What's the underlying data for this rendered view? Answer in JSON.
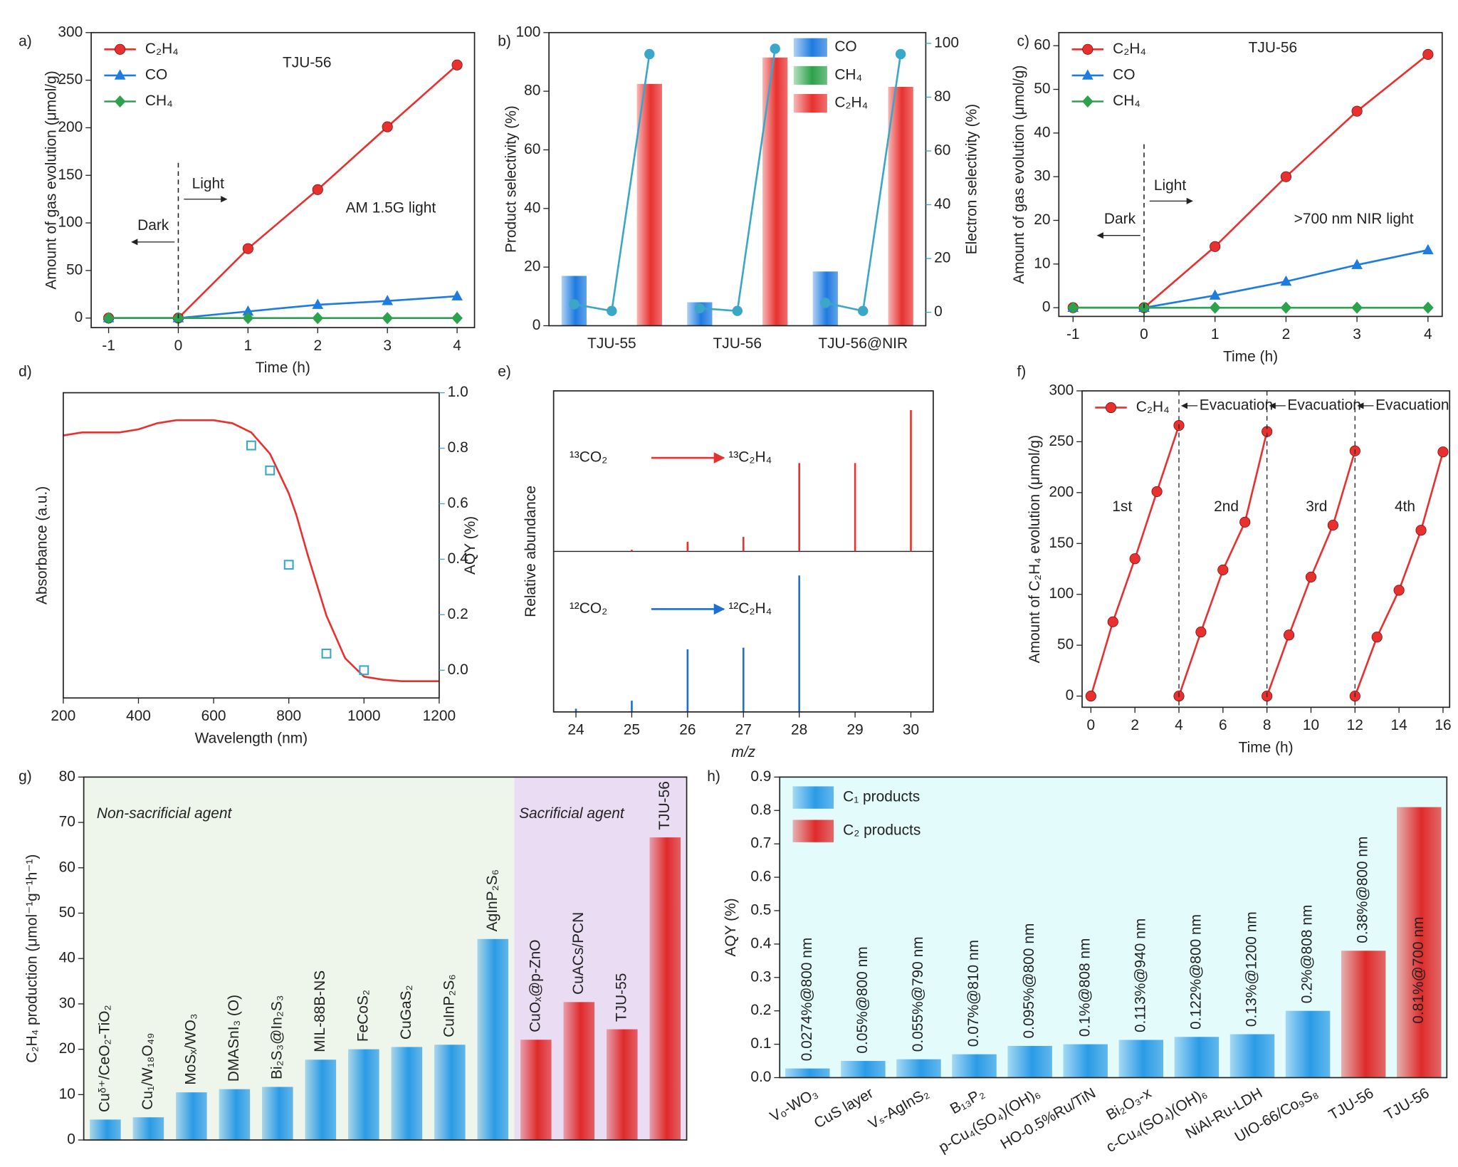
{
  "chart_data": [
    {
      "type": "line",
      "panel_label": "a)",
      "title": "TJU-56",
      "annotations": [
        "AM 1.5G light",
        "Light",
        "Dark"
      ],
      "xlabel": "Time (h)",
      "ylabel": "Amount of gas evolution (μmol/g)",
      "x": [
        -1,
        0,
        1,
        2,
        3,
        4
      ],
      "xlim": [
        -1.25,
        4.25
      ],
      "xticks": [
        -1,
        0,
        1,
        2,
        3,
        4
      ],
      "ylim": [
        -10,
        300
      ],
      "yticks": [
        0,
        50,
        100,
        150,
        200,
        250,
        300
      ],
      "divider": 0,
      "legend": "upper left",
      "series": [
        {
          "name": "C₂H₄",
          "color": "#e8312f",
          "marker": "circle",
          "values": [
            0,
            0,
            73,
            135,
            201,
            266
          ]
        },
        {
          "name": "CO",
          "color": "#1e7be0",
          "marker": "triangle",
          "values": [
            0,
            0,
            7,
            14,
            18,
            23
          ]
        },
        {
          "name": "CH₄",
          "color": "#2ca24c",
          "marker": "diamond",
          "values": [
            0,
            0,
            0,
            0,
            0,
            0
          ]
        }
      ]
    },
    {
      "type": "bar",
      "panel_label": "b)",
      "ylabel": "Product selectivity (%)",
      "y2label": "Electron selectivity (%)",
      "y2_color": "#3aa6c8",
      "categories": [
        "TJU-55",
        "TJU-56",
        "TJU-56@NIR"
      ],
      "ylim": [
        0,
        100
      ],
      "yticks": [
        0,
        20,
        40,
        60,
        80,
        100
      ],
      "y2lim": [
        -5,
        104
      ],
      "y2ticks": [
        0,
        20,
        40,
        60,
        80,
        100
      ],
      "legend": "upper right",
      "series": [
        {
          "name": "CO",
          "color": "#1e7be0",
          "values": [
            17,
            8,
            18.5
          ]
        },
        {
          "name": "CH₄",
          "color": "#2ca24c",
          "values": [
            0,
            0,
            0
          ]
        },
        {
          "name": "C₂H₄",
          "color": "#e8312f",
          "values": [
            82.5,
            91.5,
            81.5
          ]
        }
      ],
      "electron_selectivity": {
        "color": "#3aa6c8",
        "axis": "y2",
        "values": [
          [
            3,
            0.5,
            96
          ],
          [
            1.5,
            0.5,
            98
          ],
          [
            3.5,
            0.5,
            96
          ]
        ]
      }
    },
    {
      "type": "line",
      "panel_label": "c)",
      "title": "TJU-56",
      "annotations": [
        ">700 nm NIR light",
        "Light",
        "Dark"
      ],
      "xlabel": "Time (h)",
      "ylabel": "Amount of gas evolution (μmol/g)",
      "x": [
        -1,
        0,
        1,
        2,
        3,
        4
      ],
      "xlim": [
        -1.2,
        4.2
      ],
      "xticks": [
        -1,
        0,
        1,
        2,
        3,
        4
      ],
      "ylim": [
        -2,
        63
      ],
      "yticks": [
        0,
        10,
        20,
        30,
        40,
        50,
        60
      ],
      "divider": 0,
      "legend": "upper left",
      "series": [
        {
          "name": "C₂H₄",
          "color": "#e8312f",
          "marker": "circle",
          "values": [
            0,
            0,
            14,
            30,
            45,
            58
          ]
        },
        {
          "name": "CO",
          "color": "#1e7be0",
          "marker": "triangle",
          "values": [
            0,
            0,
            2.8,
            6,
            9.8,
            13.2
          ]
        },
        {
          "name": "CH₄",
          "color": "#2ca24c",
          "marker": "diamond",
          "values": [
            0,
            0,
            0,
            0,
            0,
            0
          ]
        }
      ]
    },
    {
      "type": "line",
      "panel_label": "d)",
      "xlabel": "Wavelength (nm)",
      "ylabel": "Absorbance (a.u.)",
      "ylabel_color": "#e8312f",
      "y2label": "AQY (%)",
      "y2_color": "#3aa6c8",
      "xlim": [
        200,
        1200
      ],
      "xticks": [
        200,
        400,
        600,
        800,
        1000,
        1200
      ],
      "ylim": [
        0,
        1
      ],
      "y2lim": [
        -0.1,
        1
      ],
      "y2ticks": [
        {
          "value": 0,
          "label": "0.0"
        },
        0.2,
        0.4,
        0.6,
        0.8,
        {
          "value": 1,
          "label": "1.0"
        }
      ],
      "series": [
        {
          "color": "#e8312f",
          "x": [
            200,
            250,
            300,
            350,
            400,
            450,
            500,
            550,
            600,
            650,
            700,
            750,
            800,
            820,
            850,
            900,
            950,
            1000,
            1050,
            1100,
            1150,
            1200
          ],
          "values": [
            0.86,
            0.87,
            0.87,
            0.87,
            0.88,
            0.9,
            0.91,
            0.91,
            0.91,
            0.9,
            0.87,
            0.8,
            0.67,
            0.6,
            0.47,
            0.27,
            0.13,
            0.07,
            0.06,
            0.055,
            0.055,
            0.055
          ]
        },
        {
          "color": "#3aa6c8",
          "axis": "y2",
          "marker": "square",
          "line": false,
          "x": [
            700,
            750,
            800,
            900,
            1000
          ],
          "values": [
            0.81,
            0.72,
            0.38,
            0.06,
            0
          ]
        }
      ]
    },
    {
      "type": "stem",
      "panel_label": "e)",
      "xlabel": "m/z",
      "ylabel": "Relative abundance",
      "xlim": [
        23.6,
        30.4
      ],
      "xticks": [
        24,
        25,
        26,
        27,
        28,
        29,
        30
      ],
      "ylim": [
        0,
        1
      ],
      "spectra": [
        {
          "reactant": "¹³CO₂",
          "product": "¹³C₂H₄",
          "color": "#e8312f",
          "x": [
            25,
            26,
            27,
            28,
            29,
            30
          ],
          "values": [
            0.01,
            0.06,
            0.09,
            0.55,
            0.55,
            0.88
          ]
        },
        {
          "reactant": "¹²CO₂",
          "product": "¹²C₂H₄",
          "color": "#1e6fd0",
          "x": [
            24,
            25,
            26,
            27,
            28
          ],
          "values": [
            0.02,
            0.07,
            0.39,
            0.4,
            0.85
          ]
        }
      ]
    },
    {
      "type": "line",
      "panel_label": "f)",
      "xlabel": "Time (h)",
      "ylabel": "Amount of C₂H₄ evolution (μmol/g)",
      "xlim": [
        -0.4,
        16.3
      ],
      "xticks": [
        0,
        2,
        4,
        6,
        8,
        10,
        12,
        14,
        16
      ],
      "ylim": [
        -11,
        300
      ],
      "yticks": [
        0,
        50,
        100,
        150,
        200,
        250,
        300
      ],
      "legend": "upper left",
      "vlines": [
        4,
        8,
        12
      ],
      "vline_label": "Evacuation",
      "annotations": [
        "1st",
        "2nd",
        "3rd",
        "4th"
      ],
      "x": [
        0,
        1,
        2,
        3,
        4,
        4,
        4,
        5,
        6,
        7,
        8,
        8,
        8,
        9,
        10,
        11,
        12,
        12,
        12,
        13,
        14,
        15,
        16
      ],
      "series": [
        {
          "name": "C₂H₄",
          "color": "#e8312f",
          "marker": "circle",
          "values": [
            0,
            73,
            135,
            201,
            266,
            null,
            0,
            63,
            124,
            171,
            260,
            null,
            0,
            60,
            117,
            168,
            241,
            null,
            0,
            58,
            104,
            163,
            240
          ]
        }
      ]
    },
    {
      "type": "bar",
      "panel_label": "g)",
      "ylabel": "C₂H₄ production (μmol⁻¹g⁻¹h⁻¹)",
      "ylim": [
        0,
        80
      ],
      "yticks": [
        0,
        10,
        20,
        30,
        40,
        50,
        60,
        70,
        80
      ],
      "regions": [
        {
          "label": "Non-sacrificial agent",
          "color": "#eef5ea"
        },
        {
          "label": "Sacrificial agent",
          "color": "#eadcf3"
        }
      ],
      "categories": [
        "Cuᵟ⁺/CeO₂-TiO₂",
        "Cu₁/W₁₈O₄₉",
        "MoSₓ/WO₃",
        "DMASnI₃ (O)",
        "Bi₂S₃@In₂S₃",
        "MIL-88B-NS",
        "FeCoS₂",
        "CuGaS₂",
        "CuInP₂S₆",
        "AgInP₂S₆",
        "CuOₓ@p-ZnO",
        "CuACs/PCN",
        "TJU-55",
        "TJU-56"
      ],
      "values": [
        4.5,
        5,
        10.5,
        11.2,
        11.7,
        17.7,
        20,
        20.5,
        21,
        44.3,
        22.1,
        30.4,
        24.4,
        66.7
      ],
      "colors": [
        "#2a9be6",
        "#2a9be6",
        "#2a9be6",
        "#2a9be6",
        "#2a9be6",
        "#2a9be6",
        "#2a9be6",
        "#2a9be6",
        "#2a9be6",
        "#2a9be6",
        "#e02a2a",
        "#e02a2a",
        "#e02a2a",
        "#e02a2a"
      ],
      "label_colors": [
        "#222",
        "#222",
        "#222",
        "#222",
        "#222",
        "#222",
        "#222",
        "#222",
        "#222",
        "#222",
        "#222",
        "#222",
        "#e02a2a",
        "#e02a2a"
      ]
    },
    {
      "type": "bar",
      "panel_label": "h)",
      "ylabel": "AQY (%)",
      "background": "#e4fbfb",
      "ylim": [
        0,
        0.9
      ],
      "yticks": [
        {
          "value": 0,
          "label": "0.0"
        },
        0.1,
        0.2,
        0.3,
        0.4,
        0.5,
        0.6,
        0.7,
        0.8,
        0.9
      ],
      "legend_entries": [
        {
          "name": "C₁ products",
          "color": "#2a9be6"
        },
        {
          "name": "C₂ products",
          "color": "#e02a2a"
        }
      ],
      "categories": [
        "Vₒ-WO₃",
        "CuS layer",
        "Vₛ-AgInS₂",
        "B₁₃P₂",
        "p-Cu₄(SO₄)(OH)₆",
        "HO-0.5%Ru/TiN",
        "Bi₂O₃-x",
        "c-Cu₄(SO₄)(OH)₆",
        "NiAl-Ru-LDH",
        "UIO-66/Co₉S₈",
        "TJU-56",
        "TJU-56"
      ],
      "values": [
        0.0274,
        0.05,
        0.055,
        0.07,
        0.095,
        0.1,
        0.113,
        0.122,
        0.13,
        0.2,
        0.38,
        0.81
      ],
      "value_labels": [
        "0.0274%@800 nm",
        "0.05%@800 nm",
        "0.055%@790 nm",
        "0.07%@810 nm",
        "0.095%@800 nm",
        "0.1%@808 nm",
        "0.113%@940 nm",
        "0.122%@800 nm",
        "0.13%@1200 nm",
        "0.2%@808 nm",
        "0.38%@800 nm",
        "0.81%@700 nm"
      ],
      "colors": [
        "#2a9be6",
        "#2a9be6",
        "#2a9be6",
        "#2a9be6",
        "#2a9be6",
        "#2a9be6",
        "#2a9be6",
        "#2a9be6",
        "#2a9be6",
        "#2a9be6",
        "#e02a2a",
        "#e02a2a"
      ],
      "label_colors": [
        "#222",
        "#222",
        "#222",
        "#222",
        "#222",
        "#222",
        "#222",
        "#222",
        "#222",
        "#222",
        "#e02a2a",
        "#e02a2a"
      ]
    }
  ]
}
